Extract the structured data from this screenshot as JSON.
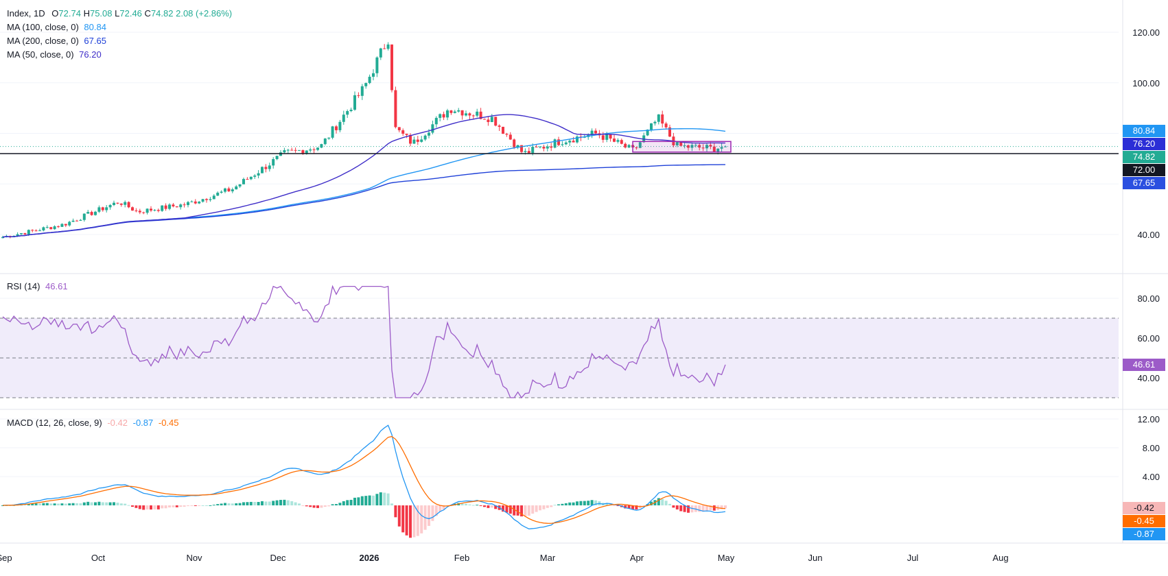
{
  "header": {
    "symbol": "Index, 1D",
    "open_label": "O",
    "open": "72.74",
    "high_label": "H",
    "high": "75.08",
    "low_label": "L",
    "low": "72.46",
    "close_label": "C",
    "close": "74.82",
    "change": "2.08 (+2.86%)"
  },
  "ma_legend": [
    {
      "label": "MA (100, close, 0)",
      "value": "80.84",
      "color": "#2196F3"
    },
    {
      "label": "MA (200, close, 0)",
      "value": "67.65",
      "color": "#1E40D8"
    },
    {
      "label": "MA (50, close, 0)",
      "value": "76.20",
      "color": "#3E2DC8"
    }
  ],
  "rsi_legend": {
    "label": "RSI (14)",
    "value": "46.61",
    "color": "#9C5BC8"
  },
  "macd_legend": {
    "label": "MACD (12, 26, close, 9)",
    "hist": "-0.42",
    "macd": "-0.87",
    "signal": "-0.45",
    "hist_color": "#F7A8A8",
    "macd_color": "#2196F3",
    "signal_color": "#FF6D00"
  },
  "badges": [
    {
      "text": "80.84",
      "color": "#2196F3",
      "y": 80.84
    },
    {
      "text": "76.20",
      "color": "#2B2ED6",
      "y": 76.2
    },
    {
      "text": "74.82",
      "color": "#22AB94",
      "y": 74.82
    },
    {
      "text": "72.00",
      "color": "#131722",
      "y": 72.0
    },
    {
      "text": "67.65",
      "color": "#2B4FE0",
      "y": 67.65
    }
  ],
  "rsi_badge": {
    "text": "46.61",
    "color": "#9C5BC8",
    "y": 46.61
  },
  "macd_badges": [
    {
      "text": "-0.42",
      "color": "#F7B7B7",
      "y": -0.42,
      "text_color": "#131722"
    },
    {
      "text": "-0.45",
      "color": "#FF6D00",
      "y": -0.45,
      "text_color": "#ffffff"
    },
    {
      "text": "-0.87",
      "color": "#2196F3",
      "y": -0.87,
      "text_color": "#ffffff"
    }
  ],
  "colors": {
    "up": "#22AB94",
    "down": "#F23645",
    "grid": "#F0F3FA",
    "rsi_band": "#F0ECFA",
    "hline": "#131722",
    "box": "#9C27B0"
  },
  "chart_data": [
    {
      "type": "candlestick",
      "title": "Index, 1D",
      "x_ticks": [
        "Sep",
        "Oct",
        "Nov",
        "Dec",
        "2026",
        "Feb",
        "Mar",
        "Apr",
        "May",
        "Jun",
        "Jul",
        "Aug"
      ],
      "y_ticks": [
        "40.00",
        "60.00",
        "80.00",
        "100.00",
        "120.00"
      ],
      "ylim": [
        28,
        126
      ],
      "horizontal_line": 72.0,
      "range_box": {
        "y_top": 76.8,
        "y_bottom": 72.6
      },
      "grid": true,
      "series_ma": [
        {
          "name": "MA (100, close, 0)",
          "last": 80.84
        },
        {
          "name": "MA (200, close, 0)",
          "last": 67.65
        },
        {
          "name": "MA (50, close, 0)",
          "last": 76.2
        }
      ],
      "last_close": 74.82
    },
    {
      "type": "line",
      "title": "RSI (14)",
      "y_ticks": [
        "40.00",
        "60.00",
        "80.00"
      ],
      "ylim": [
        26,
        88
      ],
      "bands": [
        70,
        50,
        30
      ],
      "last": 46.61
    },
    {
      "type": "bar",
      "title": "MACD (12, 26, close, 9)",
      "y_ticks": [
        "4.00",
        "8.00",
        "12.00"
      ],
      "ylim": [
        -4.2,
        12.5
      ],
      "last_hist": -0.42,
      "last_macd": -0.87,
      "last_signal": -0.45
    }
  ]
}
